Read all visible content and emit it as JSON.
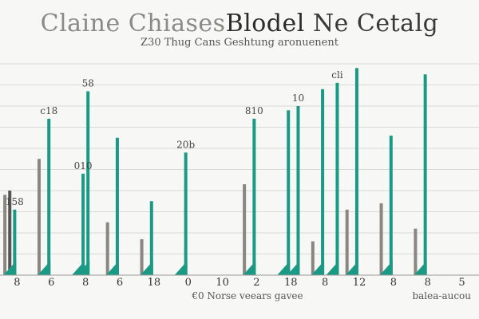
{
  "title": {
    "part1": "Claine Chiases",
    "part2": "Blodel",
    "part3": "Ne Cetalg"
  },
  "subtitle": "Z30 Thug Cans Geshtung aronuenent",
  "colors": {
    "green": "#1a9a85",
    "gray": "#8a8682",
    "dark": "#555555",
    "grid": "#d9d9d6",
    "axis": "#999999"
  },
  "chart_data": {
    "type": "bar",
    "ylim": [
      0,
      100
    ],
    "grid": true,
    "categories": [
      "8",
      "6",
      "8",
      "6",
      "18",
      "0",
      "10",
      "2",
      "18",
      "8",
      "12",
      "8",
      "8",
      "5"
    ],
    "series": [
      {
        "color": "gray",
        "values": [
          38,
          55,
          0,
          25,
          17,
          0,
          0,
          43,
          0,
          16,
          31,
          34,
          22,
          0
        ],
        "labels": [
          "",
          "",
          "",
          "",
          "",
          "",
          "",
          "",
          "",
          "",
          "",
          "",
          "",
          ""
        ]
      },
      {
        "color": "dark",
        "values": [
          40,
          0,
          0,
          0,
          0,
          0,
          0,
          0,
          0,
          0,
          0,
          0,
          0,
          0
        ],
        "labels": [
          "",
          "",
          "",
          "",
          "",
          "",
          "",
          "",
          "",
          "",
          "",
          "",
          "",
          ""
        ]
      },
      {
        "color": "green",
        "values": [
          31,
          74,
          48,
          65,
          35,
          58,
          0,
          74,
          78,
          88,
          98,
          66,
          95,
          0
        ],
        "labels": [
          "158",
          "c18",
          "010",
          "",
          "",
          "20b",
          "",
          "810",
          "",
          "",
          "",
          "",
          "",
          ""
        ]
      },
      {
        "color": "green",
        "values": [
          0,
          0,
          87,
          0,
          0,
          0,
          0,
          0,
          0,
          0,
          0,
          0,
          0,
          0
        ],
        "labels": [
          "",
          "",
          "58",
          "",
          "",
          "",
          "",
          "",
          "",
          "",
          "",
          "",
          "",
          ""
        ]
      },
      {
        "color": "green",
        "values": [
          0,
          0,
          0,
          0,
          0,
          0,
          0,
          0,
          80,
          0,
          0,
          0,
          0,
          0
        ],
        "labels": [
          "",
          "",
          "",
          "",
          "",
          "",
          "",
          "",
          "10",
          "",
          "",
          "",
          "",
          ""
        ]
      },
      {
        "color": "green",
        "values": [
          0,
          0,
          0,
          0,
          0,
          0,
          0,
          0,
          0,
          91,
          0,
          0,
          0,
          0
        ],
        "labels": [
          "",
          "",
          "",
          "",
          "",
          "",
          "",
          "",
          "",
          "cli",
          "",
          "",
          "",
          ""
        ]
      }
    ],
    "xlabel": "€0 Norse veears gavee",
    "xlabel_right": "balea-aucou"
  }
}
